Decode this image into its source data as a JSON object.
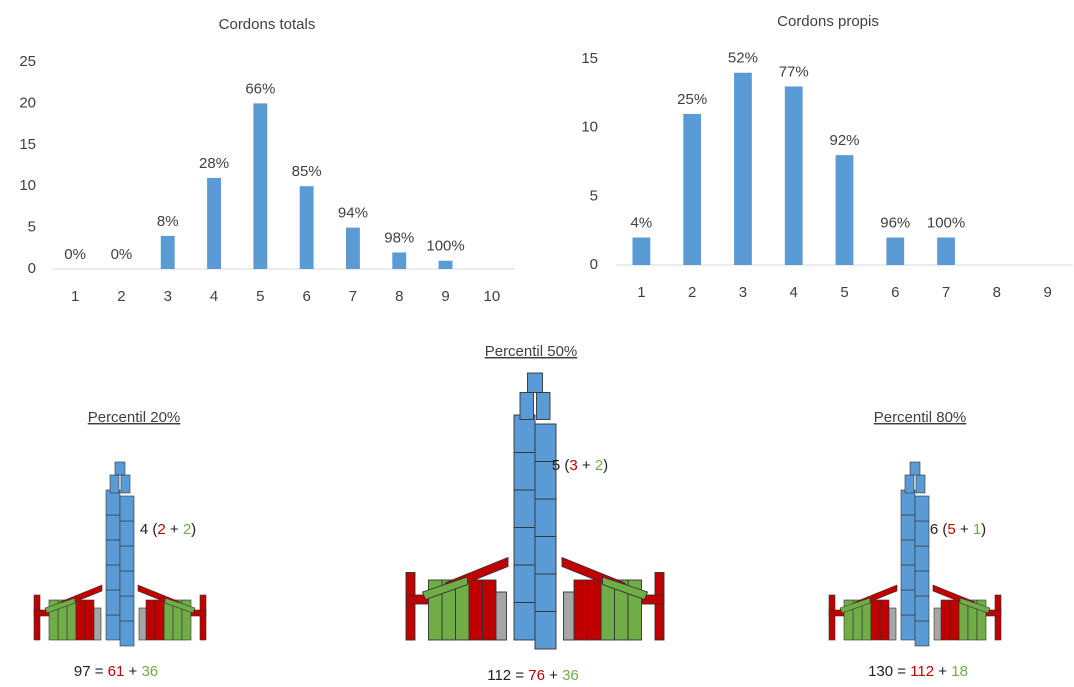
{
  "chart_data": [
    {
      "type": "bar",
      "title": "Cordons totals",
      "categories": [
        "1",
        "2",
        "3",
        "4",
        "5",
        "6",
        "7",
        "8",
        "9",
        "10"
      ],
      "values": [
        0,
        0,
        4,
        11,
        20,
        10,
        5,
        2,
        1,
        0
      ],
      "bar_labels": [
        "0%",
        "0%",
        "8%",
        "28%",
        "66%",
        "85%",
        "94%",
        "98%",
        "100%",
        null
      ],
      "color": "#5b9bd5",
      "ylim": [
        0,
        25
      ],
      "yticks": [
        0,
        5,
        10,
        15,
        20,
        25
      ]
    },
    {
      "type": "bar",
      "title": "Cordons propis",
      "categories": [
        "1",
        "2",
        "3",
        "4",
        "5",
        "6",
        "7",
        "8",
        "9"
      ],
      "values": [
        2,
        11,
        14,
        13,
        8,
        2,
        2,
        0,
        0
      ],
      "bar_labels": [
        "4%",
        "25%",
        "52%",
        "77%",
        "92%",
        "96%",
        "100%",
        null,
        null
      ],
      "color": "#5b9bd5",
      "ylim": [
        0,
        15
      ],
      "yticks": [
        0,
        5,
        10,
        15
      ]
    }
  ],
  "diagrams": [
    {
      "title": "Percentil 20%",
      "castell": [
        {
          "text": "4 ",
          "color": "#222222"
        },
        {
          "text": "(",
          "color": "#222222"
        },
        {
          "text": "2",
          "color": "#c00000"
        },
        {
          "text": " + ",
          "color": "#222222"
        },
        {
          "text": "2",
          "color": "#70ad47"
        },
        {
          "text": ")",
          "color": "#222222"
        }
      ],
      "people": [
        {
          "text": "97",
          "color": "#222222"
        },
        {
          "text": " = ",
          "color": "#222222"
        },
        {
          "text": "61",
          "color": "#c00000"
        },
        {
          "text": " + ",
          "color": "#222222"
        },
        {
          "text": "36",
          "color": "#70ad47"
        }
      ]
    },
    {
      "title": "Percentil 50%",
      "castell": [
        {
          "text": "5 ",
          "color": "#222222"
        },
        {
          "text": "(",
          "color": "#222222"
        },
        {
          "text": "3",
          "color": "#c00000"
        },
        {
          "text": " + ",
          "color": "#222222"
        },
        {
          "text": "2",
          "color": "#70ad47"
        },
        {
          "text": ")",
          "color": "#222222"
        }
      ],
      "people": [
        {
          "text": "112",
          "color": "#222222"
        },
        {
          "text": " = ",
          "color": "#222222"
        },
        {
          "text": "76",
          "color": "#c00000"
        },
        {
          "text": " + ",
          "color": "#222222"
        },
        {
          "text": "36",
          "color": "#70ad47"
        }
      ]
    },
    {
      "title": "Percentil 80%",
      "castell": [
        {
          "text": "6 ",
          "color": "#222222"
        },
        {
          "text": "(",
          "color": "#222222"
        },
        {
          "text": "5",
          "color": "#c00000"
        },
        {
          "text": " + ",
          "color": "#222222"
        },
        {
          "text": "1",
          "color": "#70ad47"
        },
        {
          "text": ")",
          "color": "#222222"
        }
      ],
      "people": [
        {
          "text": "130",
          "color": "#222222"
        },
        {
          "text": " = ",
          "color": "#222222"
        },
        {
          "text": "112",
          "color": "#c00000"
        },
        {
          "text": " + ",
          "color": "#222222"
        },
        {
          "text": "18",
          "color": "#70ad47"
        }
      ]
    }
  ]
}
